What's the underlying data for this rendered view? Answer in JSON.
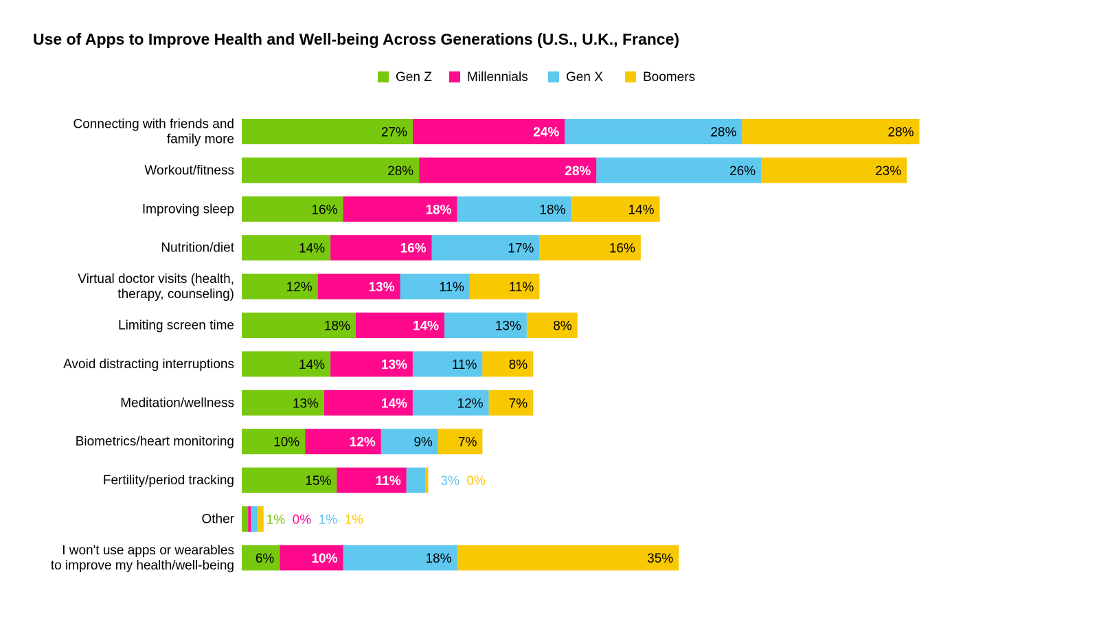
{
  "chart_data": {
    "type": "bar",
    "orientation": "horizontal",
    "stacked": true,
    "title": "Use of Apps to Improve Health and Well-being Across Generations (U.S., U.K., France)",
    "legend_position": "top-center",
    "grid": false,
    "categories": [
      [
        "Connecting with friends and",
        "family more"
      ],
      [
        "Workout/fitness"
      ],
      [
        "Improving sleep"
      ],
      [
        "Nutrition/diet"
      ],
      [
        "Virtual doctor visits (health,",
        "therapy, counseling)"
      ],
      [
        "Limiting screen time"
      ],
      [
        "Avoid distracting interruptions"
      ],
      [
        "Meditation/wellness"
      ],
      [
        "Biometrics/heart monitoring"
      ],
      [
        "Fertility/period tracking"
      ],
      [
        "Other"
      ],
      [
        "I won't use apps or wearables",
        "to improve my health/well-being"
      ]
    ],
    "series": [
      {
        "name": "Gen Z",
        "color": "#78c80f",
        "label_color": "#000000",
        "values": [
          27,
          28,
          16,
          14,
          12,
          18,
          14,
          13,
          10,
          15,
          1,
          6
        ]
      },
      {
        "name": "Millennials",
        "color": "#ff0a8c",
        "label_color": "#ffffff",
        "values": [
          24,
          28,
          18,
          16,
          13,
          14,
          13,
          14,
          12,
          11,
          0,
          10
        ]
      },
      {
        "name": "Gen X",
        "color": "#5ec8ef",
        "label_color": "#000000",
        "values": [
          28,
          26,
          18,
          17,
          11,
          13,
          11,
          12,
          9,
          3,
          1,
          18
        ]
      },
      {
        "name": "Boomers",
        "color": "#f8c800",
        "label_color": "#000000",
        "values": [
          28,
          23,
          14,
          16,
          11,
          8,
          8,
          7,
          7,
          0,
          1,
          35
        ]
      }
    ],
    "value_suffix": "%"
  }
}
